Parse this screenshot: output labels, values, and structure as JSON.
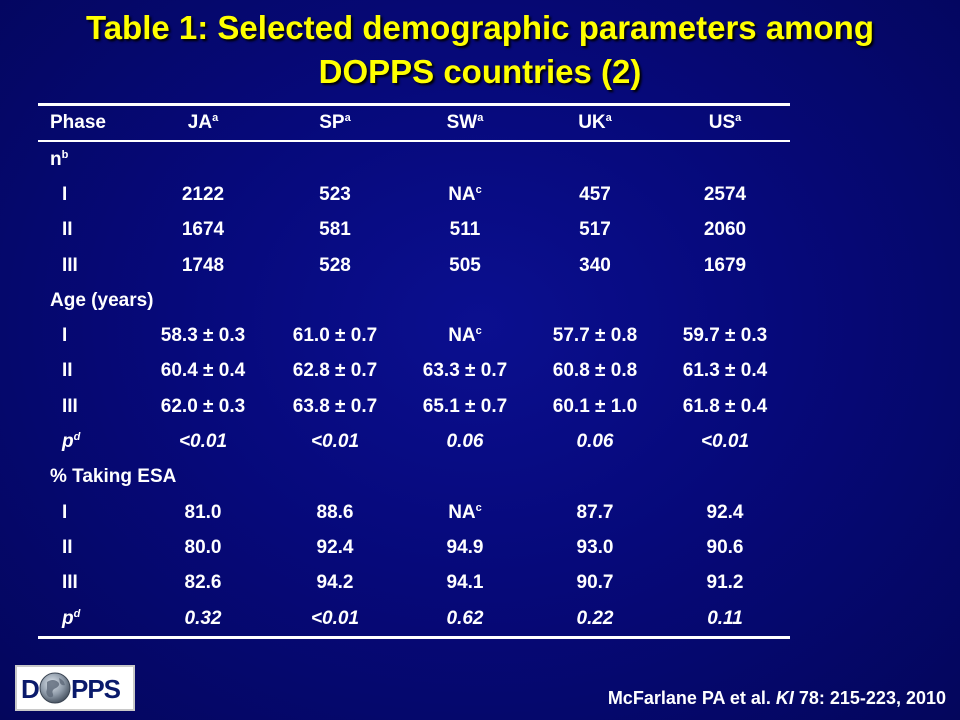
{
  "slide": {
    "title_line1": "Table 1: Selected demographic parameters among",
    "title_line2": "DOPPS countries (2)",
    "citation_pre": "McFarlane PA et al. ",
    "citation_journal": "KI",
    "citation_post": " 78: 215-223, 2010",
    "logo_text": "DOPPS",
    "title_color": "#ffff00",
    "background_color": "#06097a"
  },
  "table": {
    "header": {
      "phase": "Phase",
      "columns": [
        {
          "label": "JA",
          "sup": "a"
        },
        {
          "label": "SP",
          "sup": "a"
        },
        {
          "label": "SW",
          "sup": "a"
        },
        {
          "label": "UK",
          "sup": "a"
        },
        {
          "label": "US",
          "sup": "a"
        }
      ]
    },
    "sections": {
      "n": {
        "label": "n",
        "sup": "b"
      },
      "age": {
        "label": "Age (years)"
      },
      "esa": {
        "label": "% Taking ESA"
      }
    },
    "n_rows": [
      {
        "phase": "I",
        "values": [
          "2122",
          "523",
          "NA",
          "457",
          "2574"
        ],
        "sw_sup": "c"
      },
      {
        "phase": "II",
        "values": [
          "1674",
          "581",
          "511",
          "517",
          "2060"
        ]
      },
      {
        "phase": "III",
        "values": [
          "1748",
          "528",
          "505",
          "340",
          "1679"
        ]
      }
    ],
    "age_rows": [
      {
        "phase": "I",
        "values": [
          "58.3 ± 0.3",
          "61.0 ± 0.7",
          "NA",
          "57.7 ± 0.8",
          "59.7 ± 0.3"
        ],
        "sw_sup": "c"
      },
      {
        "phase": "II",
        "values": [
          "60.4 ± 0.4",
          "62.8 ± 0.7",
          "63.3 ± 0.7",
          "60.8 ± 0.8",
          "61.3 ± 0.4"
        ]
      },
      {
        "phase": "III",
        "values": [
          "62.0 ± 0.3",
          "63.8 ± 0.7",
          "65.1 ± 0.7",
          "60.1 ± 1.0",
          "61.8 ± 0.4"
        ]
      }
    ],
    "age_p": {
      "label": "p",
      "sup": "d",
      "values": [
        "<0.01",
        "<0.01",
        "0.06",
        "0.06",
        "<0.01"
      ]
    },
    "esa_rows": [
      {
        "phase": "I",
        "values": [
          "81.0",
          "88.6",
          "NA",
          "87.7",
          "92.4"
        ],
        "sw_sup": "c"
      },
      {
        "phase": "II",
        "values": [
          "80.0",
          "92.4",
          "94.9",
          "93.0",
          "90.6"
        ]
      },
      {
        "phase": "III",
        "values": [
          "82.6",
          "94.2",
          "94.1",
          "90.7",
          "91.2"
        ]
      }
    ],
    "esa_p": {
      "label": "p",
      "sup": "d",
      "values": [
        "0.32",
        "<0.01",
        "0.62",
        "0.22",
        "0.11"
      ]
    }
  }
}
